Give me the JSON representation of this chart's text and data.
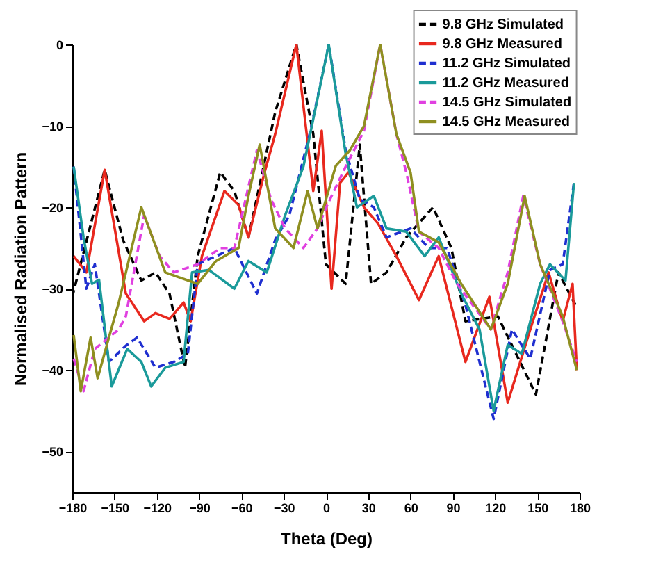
{
  "chart_data": {
    "type": "line",
    "xlabel": "Theta (Deg)",
    "ylabel": "Normalised Radiation Pattern",
    "xlim": [
      -180,
      180
    ],
    "xticks": [
      -180,
      -150,
      -120,
      -90,
      -60,
      -30,
      0,
      30,
      60,
      90,
      120,
      150,
      180
    ],
    "ylim": [
      -55,
      0
    ],
    "yticks": [
      -50,
      -40,
      -30,
      -20,
      -10,
      0
    ],
    "grid": false,
    "legend": "top right",
    "marker": "none",
    "series": [
      {
        "name": "9.8 GHz Simulated",
        "color": "#000000",
        "line_style": "dashed",
        "x": [
          -180,
          -157,
          -144,
          -131,
          -121,
          -111,
          -100,
          -91,
          -75,
          -65,
          -55,
          -36,
          -21,
          -9,
          0,
          14,
          24,
          32,
          43,
          57,
          76,
          89,
          99,
          122,
          149,
          165,
          177
        ],
        "values": [
          -31,
          -15.4,
          -24,
          -29,
          -28,
          -30.6,
          -39.7,
          -26,
          -15.7,
          -18,
          -23.7,
          -8.3,
          0,
          -11,
          -27,
          -29.4,
          -12.3,
          -29.4,
          -28,
          -23.7,
          -20,
          -25,
          -34,
          -33.4,
          -43,
          -28,
          -32
        ]
      },
      {
        "name": "9.8 GHz Measured",
        "color": "#e8281e",
        "line_style": "solid",
        "x": [
          -179,
          -170,
          -157,
          -142,
          -129,
          -121,
          -111,
          -101,
          -96,
          -88,
          -72,
          -62,
          -55,
          -44,
          -36,
          -21,
          -9,
          -3,
          4,
          10,
          16,
          27,
          37,
          50,
          66,
          80,
          99,
          116,
          129,
          145,
          158,
          168,
          175,
          178
        ],
        "values": [
          -26,
          -28,
          -15.4,
          -30.6,
          -34,
          -33,
          -33.7,
          -31.7,
          -34,
          -26,
          -18,
          -19.7,
          -23.7,
          -16,
          -11,
          0,
          -18,
          -10.6,
          -30,
          -17,
          -15.7,
          -20,
          -22,
          -26,
          -31.4,
          -26,
          -39,
          -31,
          -44,
          -35,
          -28,
          -34,
          -29.4,
          -40
        ]
      },
      {
        "name": "11.2 GHz Simulated",
        "color": "#1f2fd0",
        "line_style": "dashed",
        "x": [
          -179,
          -170,
          -164,
          -154,
          -142,
          -134,
          -121,
          -108,
          -98,
          -91,
          -78,
          -65,
          -49,
          -36,
          -26,
          -11,
          2,
          14,
          24,
          34,
          43,
          60,
          73,
          86,
          99,
          119,
          132,
          145,
          159,
          168,
          176
        ],
        "values": [
          -15,
          -30,
          -27,
          -39,
          -37,
          -36,
          -39.7,
          -39,
          -38,
          -27,
          -26,
          -25,
          -30.6,
          -24,
          -21,
          -10.6,
          0,
          -13,
          -19,
          -20,
          -23.7,
          -22.6,
          -25,
          -25,
          -32,
          -46,
          -35,
          -38.6,
          -27.7,
          -27,
          -17
        ]
      },
      {
        "name": "11.2 GHz Measured",
        "color": "#1a9a9a",
        "line_style": "solid",
        "x": [
          -179,
          -172,
          -166,
          -161,
          -152,
          -141,
          -131,
          -124,
          -114,
          -101,
          -95,
          -83,
          -65,
          -55,
          -42,
          -29,
          -16,
          2,
          14,
          22,
          34,
          43,
          57,
          70,
          80,
          96,
          109,
          119,
          129,
          139,
          152,
          159,
          170,
          176
        ],
        "values": [
          -15,
          -23.7,
          -29.4,
          -28.9,
          -42,
          -37.4,
          -39,
          -42,
          -39.7,
          -39,
          -28,
          -27.7,
          -30,
          -26.6,
          -28,
          -21,
          -15,
          0,
          -13.4,
          -20,
          -18.6,
          -22.6,
          -23,
          -26,
          -23.7,
          -30.6,
          -35,
          -45,
          -36.9,
          -38,
          -29.4,
          -27,
          -29,
          -17
        ]
      },
      {
        "name": "14.5 GHz Simulated",
        "color": "#e040e0",
        "line_style": "dashed",
        "x": [
          -179,
          -172,
          -164,
          -147,
          -142,
          -129,
          -118,
          -108,
          -91,
          -75,
          -65,
          -49,
          -39,
          -29,
          -16,
          -6,
          1,
          14,
          27,
          38.5,
          50,
          57,
          66,
          80,
          93,
          117,
          129,
          140,
          152,
          168,
          178
        ],
        "values": [
          -38.6,
          -42.6,
          -37.4,
          -35,
          -33.4,
          -21,
          -26,
          -28,
          -27,
          -25,
          -25,
          -13,
          -19,
          -22.6,
          -25,
          -22.6,
          -19.7,
          -15,
          -10.6,
          0,
          -11,
          -15.7,
          -23,
          -25,
          -29.4,
          -35,
          -28,
          -18.6,
          -27,
          -34,
          -39
        ]
      },
      {
        "name": "14.5 GHz Measured",
        "color": "#8f8f20",
        "line_style": "solid",
        "x": [
          -179,
          -174,
          -167,
          -162,
          -154,
          -147,
          -131,
          -114,
          -91,
          -78,
          -62,
          -55,
          -47,
          -36,
          -23,
          -13,
          -6,
          7,
          17,
          27,
          38.5,
          50,
          60,
          66,
          80,
          96,
          117,
          129,
          141,
          152,
          168,
          178
        ],
        "values": [
          -35.7,
          -42.6,
          -36,
          -41,
          -36,
          -31.7,
          -20,
          -28,
          -29.4,
          -26.6,
          -25,
          -18.6,
          -12.3,
          -22.6,
          -25,
          -18,
          -22.6,
          -14.9,
          -13,
          -10,
          0,
          -11,
          -15.7,
          -23,
          -24.3,
          -29.4,
          -35,
          -29.4,
          -18.6,
          -27,
          -33.4,
          -40
        ]
      }
    ]
  }
}
